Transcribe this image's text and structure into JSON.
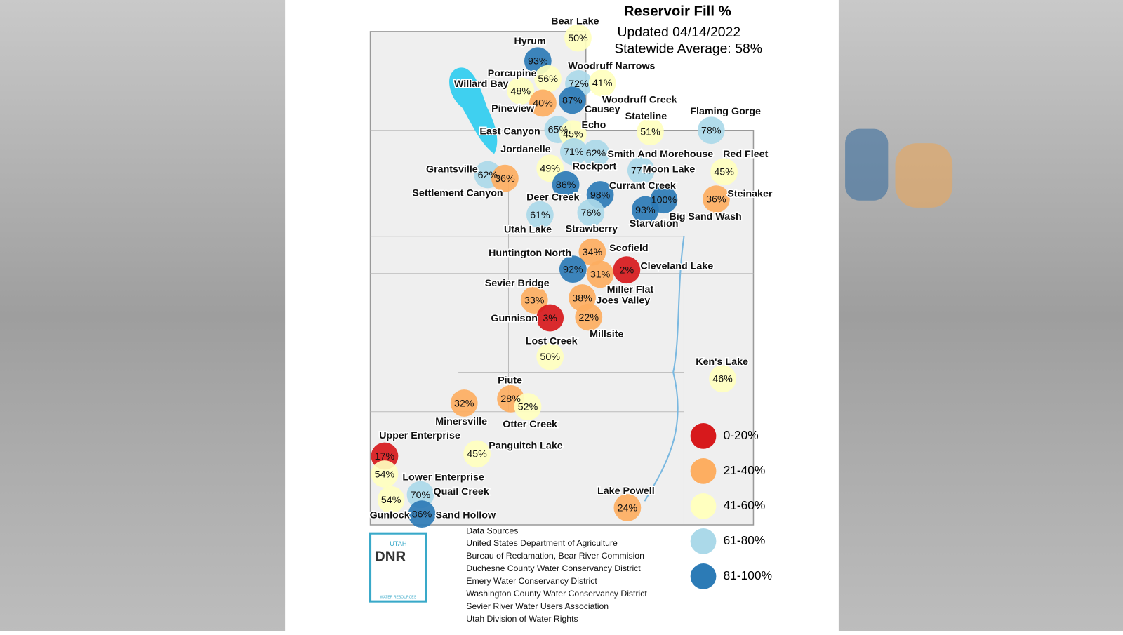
{
  "title": "Reservoir Fill %",
  "updated": "Updated 04/14/2022",
  "statewide": "Statewide Average: 58%",
  "reservoirs": [
    {
      "name": "Bear Lake",
      "pct": 50,
      "label": "50%"
    },
    {
      "name": "Hyrum",
      "pct": 93,
      "label": "93%"
    },
    {
      "name": "Porcupine",
      "pct": 56,
      "label": "56%"
    },
    {
      "name": "Willard Bay",
      "pct": 48,
      "label": "48%"
    },
    {
      "name": "Woodruff Narrows",
      "pct": 72,
      "label": "72%"
    },
    {
      "name": "Woodruff Creek",
      "pct": 41,
      "label": "41%"
    },
    {
      "name": "Pineview",
      "pct": 40,
      "label": "40%"
    },
    {
      "name": "Causey",
      "pct": 87,
      "label": "87%"
    },
    {
      "name": "Stateline",
      "pct": 51,
      "label": "51%"
    },
    {
      "name": "Flaming Gorge",
      "pct": 78,
      "label": "78%"
    },
    {
      "name": "East Canyon",
      "pct": 65,
      "label": "65%"
    },
    {
      "name": "Echo",
      "pct": 45,
      "label": "45%"
    },
    {
      "name": "Jordanelle",
      "pct": 71,
      "label": "71%"
    },
    {
      "name": "Smith And Morehouse",
      "pct": 62,
      "label": "62%"
    },
    {
      "name": "Red Fleet",
      "pct": 45,
      "label": "45%"
    },
    {
      "name": "Moon Lake",
      "pct": 77,
      "label": "77%"
    },
    {
      "name": "Rockport",
      "pct": 49,
      "label": "49%"
    },
    {
      "name": "Grantsville",
      "pct": 62,
      "label": "62%"
    },
    {
      "name": "Settlement Canyon",
      "pct": 36,
      "label": "36%"
    },
    {
      "name": "Deer Creek",
      "pct": 86,
      "label": "86%"
    },
    {
      "name": "Currant Creek",
      "pct": 98,
      "label": "98%"
    },
    {
      "name": "Steinaker",
      "pct": 36,
      "label": "36%"
    },
    {
      "name": "Big Sand Wash",
      "pct": 100,
      "label": "100%"
    },
    {
      "name": "Starvation",
      "pct": 93,
      "label": "93%"
    },
    {
      "name": "Utah Lake",
      "pct": 61,
      "label": "61%"
    },
    {
      "name": "Strawberry",
      "pct": 76,
      "label": "76%"
    },
    {
      "name": "Scofield",
      "pct": 34,
      "label": "34%"
    },
    {
      "name": "Huntington North",
      "pct": 92,
      "label": "92%"
    },
    {
      "name": "Miller Flat",
      "pct": 31,
      "label": "31%"
    },
    {
      "name": "Cleveland Lake",
      "pct": 2,
      "label": "2%"
    },
    {
      "name": "Joes Valley",
      "pct": 38,
      "label": "38%"
    },
    {
      "name": "Sevier Bridge",
      "pct": 33,
      "label": "33%"
    },
    {
      "name": "Gunnison",
      "pct": 3,
      "label": "3%"
    },
    {
      "name": "Millsite",
      "pct": 22,
      "label": "22%"
    },
    {
      "name": "Lost Creek",
      "pct": 50,
      "label": "50%"
    },
    {
      "name": "Ken's Lake",
      "pct": 46,
      "label": "46%"
    },
    {
      "name": "Piute",
      "pct": 28,
      "label": "28%"
    },
    {
      "name": "Minersville",
      "pct": 32,
      "label": "32%"
    },
    {
      "name": "Otter Creek",
      "pct": 52,
      "label": "52%"
    },
    {
      "name": "Upper Enterprise",
      "pct": 17,
      "label": "17%"
    },
    {
      "name": "Panguitch Lake",
      "pct": 45,
      "label": "45%"
    },
    {
      "name": "Lower Enterprise",
      "pct": 54,
      "label": "54%"
    },
    {
      "name": "Quail Creek",
      "pct": 70,
      "label": "70%"
    },
    {
      "name": "Gunlock",
      "pct": 54,
      "label": "54%"
    },
    {
      "name": "Sand Hollow",
      "pct": 86,
      "label": "86%"
    },
    {
      "name": "Lake Powell",
      "pct": 24,
      "label": "24%"
    }
  ],
  "legend": [
    {
      "label": "0-20%",
      "min": 0,
      "max": 20,
      "color": "#d7191c"
    },
    {
      "label": "21-40%",
      "min": 21,
      "max": 40,
      "color": "#fdae61"
    },
    {
      "label": "41-60%",
      "min": 41,
      "max": 60,
      "color": "#ffffbf"
    },
    {
      "label": "61-80%",
      "min": 61,
      "max": 80,
      "color": "#abd9e9"
    },
    {
      "label": "81-100%",
      "min": 81,
      "max": 100,
      "color": "#2c7bb6"
    }
  ],
  "sources": {
    "heading": "Data Sources",
    "items": [
      "United States Department of Agriculture",
      "Bureau of Reclamation, Bear River Commision",
      "Duchesne County Water Conservancy District",
      "Emery Water Conservancy District",
      "Washington County Water Conservancy District",
      "Sevier River Water Users Association",
      "Utah Division of Water Rights"
    ]
  },
  "logo": {
    "top": "UTAH",
    "mark": "DNR",
    "bottom": "WATER RESOURCES"
  }
}
